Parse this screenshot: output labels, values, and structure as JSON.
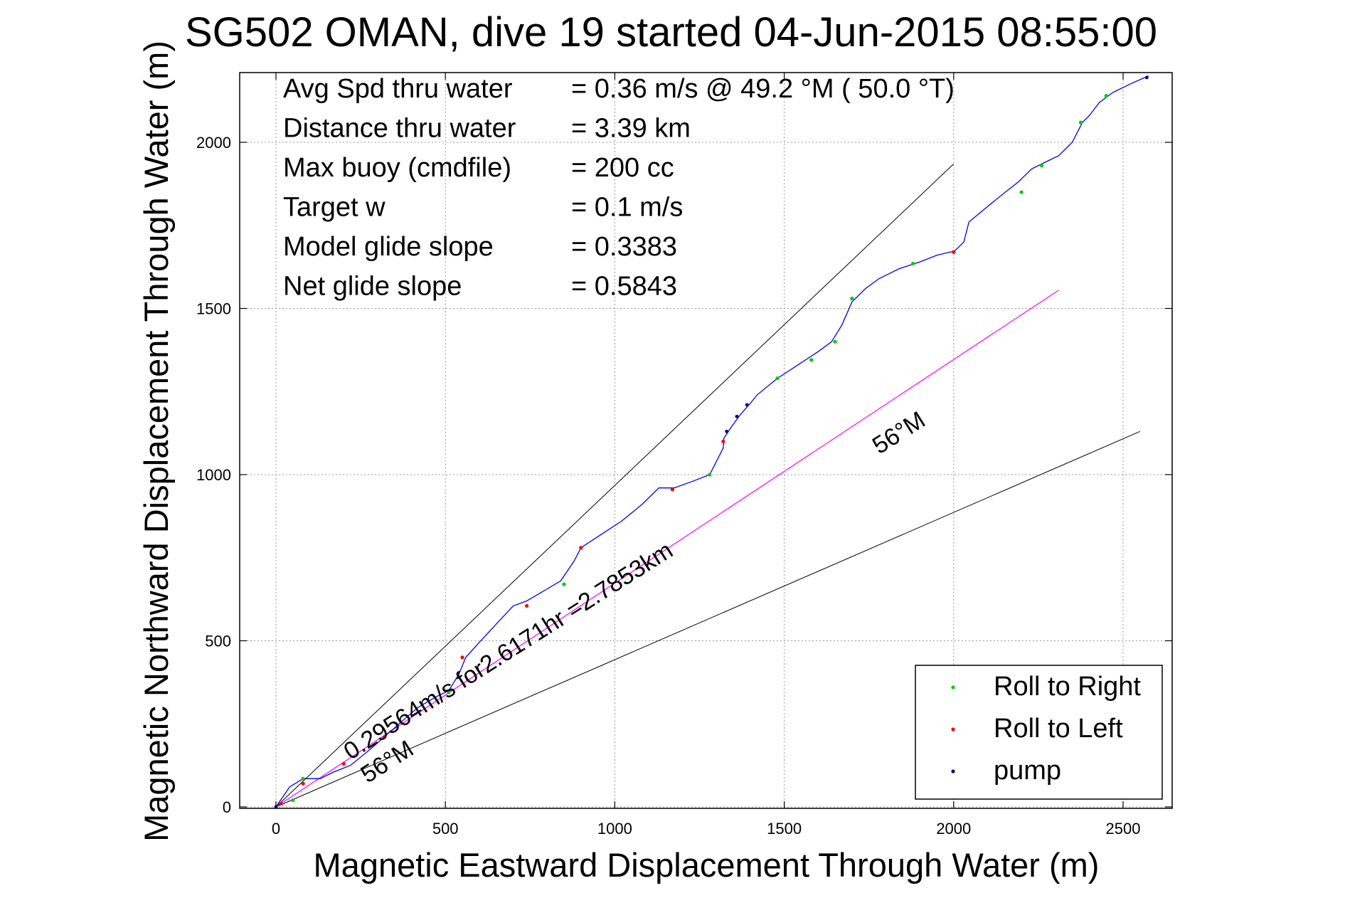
{
  "chart_data": {
    "type": "line",
    "title": "SG502 OMAN, dive 19 started 04-Jun-2015 08:55:00",
    "xlabel": "Magnetic Eastward Displacement Through Water (m)",
    "ylabel": "Magnetic Northward Displacement Through Water (m)",
    "xlim": [
      -120,
      2700
    ],
    "ylim": [
      -10,
      2200
    ],
    "xticks": [
      0,
      500,
      1000,
      1500,
      2000,
      2500
    ],
    "yticks": [
      0,
      500,
      1000,
      1500,
      2000
    ],
    "xtick_labels": [
      "0",
      "500",
      "1000",
      "1500",
      "2000",
      "2500"
    ],
    "ytick_labels": [
      "0",
      "500",
      "1000",
      "1500",
      "2000"
    ],
    "grid": true,
    "legend_position": "bottom-right",
    "colors": {
      "track": "#0000ff",
      "roll_right": "#00cc00",
      "roll_left": "#ff0000",
      "pump": "#000080",
      "net_line": "#ff00ff",
      "envelope": "#000000"
    },
    "info_lines": [
      {
        "label": "Avg Spd thru water",
        "value": "=  0.36 m/s @  49.2 °M ( 50.0 °T)"
      },
      {
        "label": "Distance thru water",
        "value": "=  3.39 km"
      },
      {
        "label": "Max buoy (cmdfile)",
        "value": "= 200 cc"
      },
      {
        "label": "Target w",
        "value": "= 0.1 m/s"
      },
      {
        "label": "Model glide slope",
        "value": "= 0.3383"
      },
      {
        "label": "Net glide slope",
        "value": "= 0.5843"
      }
    ],
    "annotations": [
      {
        "text": "0.29564m/s for2.6171hr =2.7853km",
        "x": 220,
        "y": 140,
        "angle_deg": -32.4
      },
      {
        "text": "56°M",
        "x": 270,
        "y": 70,
        "angle_deg": -32.4
      },
      {
        "text": "56°M",
        "x": 1780,
        "y": 1060,
        "angle_deg": -32.4
      }
    ],
    "series": [
      {
        "name": "track",
        "x": [
          0,
          40,
          80,
          130,
          170,
          220,
          280,
          330,
          380,
          420,
          470,
          510,
          540,
          560,
          600,
          650,
          700,
          740,
          790,
          840,
          880,
          900,
          960,
          1020,
          1080,
          1130,
          1175,
          1230,
          1280,
          1300,
          1320,
          1322,
          1345,
          1370,
          1400,
          1420,
          1480,
          1540,
          1600,
          1640,
          1670,
          1700,
          1740,
          1780,
          1840,
          1900,
          1950,
          1990,
          2000,
          2030,
          2045,
          2080,
          2140,
          2190,
          2230,
          2270,
          2310,
          2350,
          2370,
          2380,
          2400,
          2430,
          2470,
          2520,
          2575
        ],
        "y": [
          0,
          60,
          85,
          85,
          105,
          125,
          175,
          220,
          265,
          300,
          330,
          350,
          400,
          450,
          495,
          550,
          605,
          620,
          650,
          680,
          740,
          780,
          820,
          860,
          910,
          960,
          960,
          980,
          1000,
          1040,
          1080,
          1110,
          1145,
          1180,
          1215,
          1240,
          1290,
          1330,
          1370,
          1400,
          1450,
          1520,
          1560,
          1590,
          1620,
          1640,
          1660,
          1670,
          1670,
          1700,
          1760,
          1790,
          1840,
          1880,
          1920,
          1940,
          1960,
          2000,
          2040,
          2060,
          2080,
          2120,
          2150,
          2175,
          2200
        ]
      }
    ],
    "roll_right_points": [
      {
        "x": [
          50,
          80,
          510,
          850,
          1280,
          1480,
          1580,
          1650,
          1700,
          1880,
          2000,
          2200,
          2260,
          2375,
          2450
        ],
        "y": [
          20,
          85,
          345,
          670,
          1000,
          1290,
          1345,
          1400,
          1530,
          1635,
          1670,
          1850,
          1930,
          2060,
          2140
        ]
      }
    ],
    "roll_left_points": [
      {
        "x": [
          15,
          80,
          200,
          320,
          550,
          740,
          900,
          1170,
          1320,
          2000
        ],
        "y": [
          10,
          70,
          130,
          210,
          450,
          605,
          780,
          955,
          1100,
          1670
        ]
      }
    ],
    "pump_points": [
      {
        "x": [
          0,
          1330,
          1360,
          1390,
          2570
        ],
        "y": [
          0,
          1130,
          1175,
          1210,
          2195
        ]
      }
    ],
    "envelope_lines": [
      {
        "x": [
          0,
          2000
        ],
        "y": [
          0,
          1935
        ]
      },
      {
        "x": [
          0,
          2550
        ],
        "y": [
          0,
          1130
        ]
      }
    ],
    "net_line": {
      "x": [
        0,
        2310
      ],
      "y": [
        0,
        1555
      ]
    },
    "legend": [
      {
        "label": "Roll to Right",
        "color": "#00cc00"
      },
      {
        "label": "Roll to Left",
        "color": "#ff0000"
      },
      {
        "label": "pump",
        "color": "#000080"
      }
    ]
  }
}
